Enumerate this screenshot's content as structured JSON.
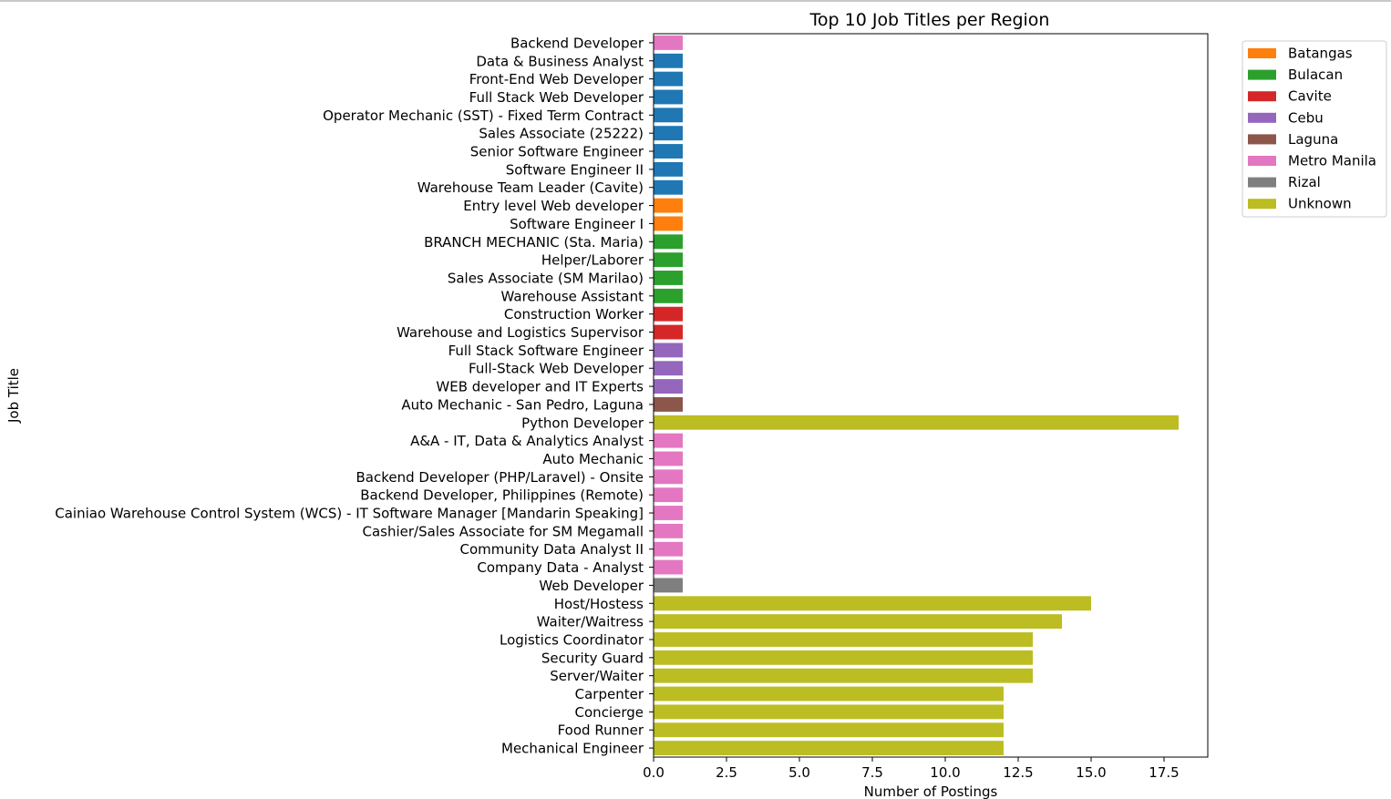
{
  "chart_data": {
    "type": "bar",
    "orientation": "horizontal",
    "title": "Top 10 Job Titles per Region",
    "xlabel": "Number of Postings",
    "ylabel": "Job Title",
    "xlim": [
      0,
      19
    ],
    "xticks": [
      0.0,
      2.5,
      5.0,
      7.5,
      10.0,
      12.5,
      15.0,
      17.5
    ],
    "xtick_labels": [
      "0.0",
      "2.5",
      "5.0",
      "7.5",
      "10.0",
      "12.5",
      "15.0",
      "17.5"
    ],
    "grid": false,
    "legend_position": "outside-top-right",
    "legend": [
      {
        "name": "Batangas",
        "color": "#ff7f0e"
      },
      {
        "name": "Bulacan",
        "color": "#2ca02c"
      },
      {
        "name": "Cavite",
        "color": "#d62728"
      },
      {
        "name": "Cebu",
        "color": "#9467bd"
      },
      {
        "name": "Laguna",
        "color": "#8c564b"
      },
      {
        "name": "Metro Manila",
        "color": "#e377c2"
      },
      {
        "name": "Rizal",
        "color": "#7f7f7f"
      },
      {
        "name": "Unknown",
        "color": "#bcbd22"
      }
    ],
    "bars": [
      {
        "label": "Backend Developer",
        "value": 1,
        "color": "#e377c2"
      },
      {
        "label": "Data & Business Analyst",
        "value": 1,
        "color": "#1f77b4"
      },
      {
        "label": "Front-End Web Developer",
        "value": 1,
        "color": "#1f77b4"
      },
      {
        "label": "Full Stack Web Developer",
        "value": 1,
        "color": "#1f77b4"
      },
      {
        "label": "Operator Mechanic (SST) - Fixed Term Contract",
        "value": 1,
        "color": "#1f77b4"
      },
      {
        "label": "Sales Associate (25222)",
        "value": 1,
        "color": "#1f77b4"
      },
      {
        "label": "Senior Software Engineer",
        "value": 1,
        "color": "#1f77b4"
      },
      {
        "label": "Software Engineer II",
        "value": 1,
        "color": "#1f77b4"
      },
      {
        "label": "Warehouse Team Leader (Cavite)",
        "value": 1,
        "color": "#1f77b4"
      },
      {
        "label": "Entry level Web developer",
        "value": 1,
        "color": "#ff7f0e"
      },
      {
        "label": "Software Engineer I",
        "value": 1,
        "color": "#ff7f0e"
      },
      {
        "label": "BRANCH MECHANIC (Sta. Maria)",
        "value": 1,
        "color": "#2ca02c"
      },
      {
        "label": "Helper/Laborer",
        "value": 1,
        "color": "#2ca02c"
      },
      {
        "label": "Sales Associate (SM Marilao)",
        "value": 1,
        "color": "#2ca02c"
      },
      {
        "label": "Warehouse Assistant",
        "value": 1,
        "color": "#2ca02c"
      },
      {
        "label": "Construction Worker",
        "value": 1,
        "color": "#d62728"
      },
      {
        "label": "Warehouse and Logistics Supervisor",
        "value": 1,
        "color": "#d62728"
      },
      {
        "label": "Full Stack Software Engineer",
        "value": 1,
        "color": "#9467bd"
      },
      {
        "label": "Full-Stack Web Developer",
        "value": 1,
        "color": "#9467bd"
      },
      {
        "label": "WEB developer and IT Experts",
        "value": 1,
        "color": "#9467bd"
      },
      {
        "label": "Auto Mechanic - San Pedro, Laguna",
        "value": 1,
        "color": "#8c564b"
      },
      {
        "label": "Python Developer",
        "value": 18,
        "color": "#bcbd22"
      },
      {
        "label": "A&A - IT, Data & Analytics Analyst",
        "value": 1,
        "color": "#e377c2"
      },
      {
        "label": "Auto Mechanic",
        "value": 1,
        "color": "#e377c2"
      },
      {
        "label": "Backend Developer (PHP/Laravel) - Onsite",
        "value": 1,
        "color": "#e377c2"
      },
      {
        "label": "Backend Developer, Philippines (Remote)",
        "value": 1,
        "color": "#e377c2"
      },
      {
        "label": "Cainiao Warehouse Control System (WCS) - IT Software Manager [Mandarin Speaking]",
        "value": 1,
        "color": "#e377c2"
      },
      {
        "label": "Cashier/Sales Associate for SM Megamall",
        "value": 1,
        "color": "#e377c2"
      },
      {
        "label": "Community Data Analyst II",
        "value": 1,
        "color": "#e377c2"
      },
      {
        "label": "Company Data - Analyst",
        "value": 1,
        "color": "#e377c2"
      },
      {
        "label": "Web Developer",
        "value": 1,
        "color": "#7f7f7f"
      },
      {
        "label": "Host/Hostess",
        "value": 15,
        "color": "#bcbd22"
      },
      {
        "label": "Waiter/Waitress",
        "value": 14,
        "color": "#bcbd22"
      },
      {
        "label": "Logistics Coordinator",
        "value": 13,
        "color": "#bcbd22"
      },
      {
        "label": "Security Guard",
        "value": 13,
        "color": "#bcbd22"
      },
      {
        "label": "Server/Waiter",
        "value": 13,
        "color": "#bcbd22"
      },
      {
        "label": "Carpenter",
        "value": 12,
        "color": "#bcbd22"
      },
      {
        "label": "Concierge",
        "value": 12,
        "color": "#bcbd22"
      },
      {
        "label": "Food Runner",
        "value": 12,
        "color": "#bcbd22"
      },
      {
        "label": "Mechanical Engineer",
        "value": 12,
        "color": "#bcbd22"
      }
    ]
  }
}
